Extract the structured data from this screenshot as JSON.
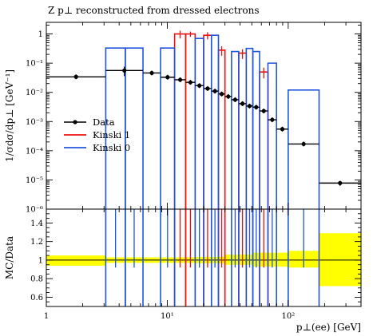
{
  "chart_data": {
    "title": "Z p⊥ reconstructed from dressed electrons",
    "xlabel": "p⊥(ee) [GeV]",
    "ylabel": "1/σdσ/dp⊥ [GeV⁻¹]",
    "ratio_ylabel": "MC/Data",
    "type": "histogram-ratio",
    "xscale": "log",
    "yscale": "log",
    "xlim": [
      1,
      400
    ],
    "ylim": [
      1e-06,
      2.5
    ],
    "ratio_ylim": [
      0.5,
      1.55
    ],
    "x_ticks": [
      {
        "value": 1,
        "label": "1"
      },
      {
        "value": 10,
        "label": "10¹"
      },
      {
        "value": 100,
        "label": "10²"
      }
    ],
    "y_ticks": [
      {
        "value": 1,
        "label": "1"
      },
      {
        "value": 0.1,
        "label": "10⁻¹"
      },
      {
        "value": 0.01,
        "label": "10⁻²"
      },
      {
        "value": 0.001,
        "label": "10⁻³"
      },
      {
        "value": 0.0001,
        "label": "10⁻⁴"
      },
      {
        "value": 1e-05,
        "label": "10⁻⁵"
      },
      {
        "value": 1e-06,
        "label": "10⁻⁶"
      }
    ],
    "ratio_ticks": [
      {
        "value": 0.6,
        "label": "0.6"
      },
      {
        "value": 0.8,
        "label": "0.8"
      },
      {
        "value": 1.0,
        "label": "1"
      },
      {
        "value": 1.2,
        "label": "1.2"
      },
      {
        "value": 1.4,
        "label": "1.4"
      }
    ],
    "legend": {
      "position": "left-middle"
    },
    "series": [
      {
        "name": "Data",
        "color": "#000000",
        "style": "points",
        "bins": [
          {
            "xlo": 1,
            "xhi": 3.1,
            "y": 0.034
          },
          {
            "xlo": 3.1,
            "xhi": 6.3,
            "y": 0.056,
            "err": 0.02
          },
          {
            "xlo": 6.3,
            "xhi": 8.8,
            "y": 0.046
          },
          {
            "xlo": 8.8,
            "xhi": 11.5,
            "y": 0.033
          },
          {
            "xlo": 11.5,
            "xhi": 14.2,
            "y": 0.027
          },
          {
            "xlo": 14.2,
            "xhi": 17.0,
            "y": 0.022
          },
          {
            "xlo": 17.0,
            "xhi": 20.0,
            "y": 0.017
          },
          {
            "xlo": 20.0,
            "xhi": 23.2,
            "y": 0.0135
          },
          {
            "xlo": 23.2,
            "xhi": 26.5,
            "y": 0.011
          },
          {
            "xlo": 26.5,
            "xhi": 30.0,
            "y": 0.0088
          },
          {
            "xlo": 30.0,
            "xhi": 34.0,
            "y": 0.0072
          },
          {
            "xlo": 34.0,
            "xhi": 39.0,
            "y": 0.0056
          },
          {
            "xlo": 39.0,
            "xhi": 45.0,
            "y": 0.0041
          },
          {
            "xlo": 45.0,
            "xhi": 51.0,
            "y": 0.0034
          },
          {
            "xlo": 51.0,
            "xhi": 58.0,
            "y": 0.0031
          },
          {
            "xlo": 58.0,
            "xhi": 68.0,
            "y": 0.0023
          },
          {
            "xlo": 68.0,
            "xhi": 80.0,
            "y": 0.00115
          },
          {
            "xlo": 80.0,
            "xhi": 100.0,
            "y": 0.00055
          },
          {
            "xlo": 100.0,
            "xhi": 180.0,
            "y": 0.00017
          },
          {
            "xlo": 180.0,
            "xhi": 400.0,
            "y": 7.8e-06,
            "err": 1.5e-06
          }
        ]
      },
      {
        "name": "Kinski 1",
        "color": "#ee1111",
        "style": "steps",
        "bins": [
          {
            "xlo": 11.5,
            "xhi": 14.2,
            "y": 1.0,
            "err": 0.3
          },
          {
            "xlo": 14.2,
            "xhi": 17.0,
            "y": 1.0,
            "err": 0.2
          },
          {
            "xlo": 20.0,
            "xhi": 23.2,
            "y": 0.9,
            "err": 0.25
          },
          {
            "xlo": 26.5,
            "xhi": 30.0,
            "y": 0.28,
            "err": 0.1
          },
          {
            "xlo": 39.0,
            "xhi": 45.0,
            "y": 0.22,
            "err": 0.08
          },
          {
            "xlo": 58.0,
            "xhi": 68.0,
            "y": 0.05,
            "err": 0.02
          }
        ]
      },
      {
        "name": "Kinski 0",
        "color": "#2255dd",
        "style": "steps",
        "bins": [
          {
            "xlo": 3.1,
            "xhi": 4.5,
            "y": 0.33
          },
          {
            "xlo": 4.5,
            "xhi": 6.3,
            "y": 0.33
          },
          {
            "xlo": 8.8,
            "xhi": 11.5,
            "y": 0.33
          },
          {
            "xlo": 17.0,
            "xhi": 20.0,
            "y": 0.7
          },
          {
            "xlo": 23.2,
            "xhi": 26.5,
            "y": 0.9
          },
          {
            "xlo": 34.0,
            "xhi": 39.0,
            "y": 0.25
          },
          {
            "xlo": 45.0,
            "xhi": 51.0,
            "y": 0.32
          },
          {
            "xlo": 51.0,
            "xhi": 58.0,
            "y": 0.25
          },
          {
            "xlo": 68.0,
            "xhi": 80.0,
            "y": 0.1
          },
          {
            "xlo": 100.0,
            "xhi": 180.0,
            "y": 0.012
          }
        ]
      }
    ],
    "ratio": {
      "band_color": "#ffff00",
      "band": [
        {
          "xlo": 1,
          "xhi": 3.1,
          "lo": 0.94,
          "hi": 1.05
        },
        {
          "xlo": 3.1,
          "xhi": 6.3,
          "lo": 0.97,
          "hi": 1.03
        },
        {
          "xlo": 6.3,
          "xhi": 17.0,
          "lo": 0.97,
          "hi": 1.03
        },
        {
          "xlo": 17.0,
          "xhi": 30.0,
          "lo": 0.965,
          "hi": 1.035
        },
        {
          "xlo": 30.0,
          "xhi": 51.0,
          "lo": 0.95,
          "hi": 1.06
        },
        {
          "xlo": 51.0,
          "xhi": 100.0,
          "lo": 0.93,
          "hi": 1.08
        },
        {
          "xlo": 100.0,
          "xhi": 180.0,
          "lo": 0.92,
          "hi": 1.1
        },
        {
          "xlo": 180.0,
          "xhi": 400.0,
          "lo": 0.72,
          "hi": 1.29
        }
      ]
    }
  }
}
